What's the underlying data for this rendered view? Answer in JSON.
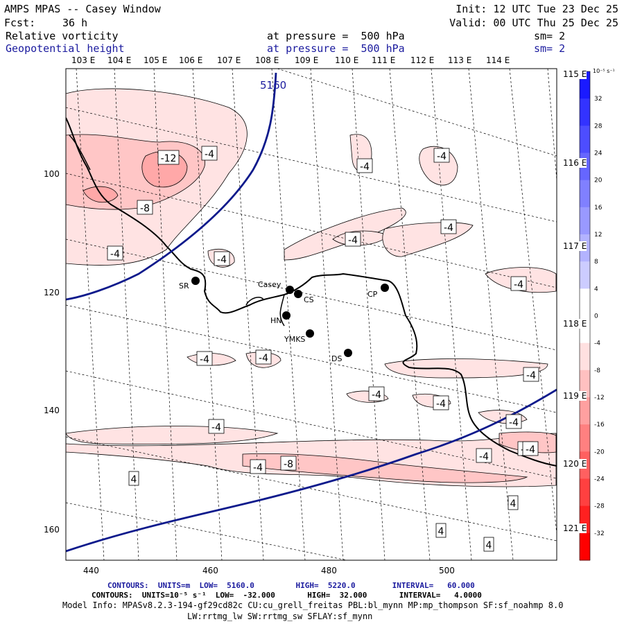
{
  "header": {
    "title": "AMPS MPAS -- Casey Window",
    "fcst_label": "Fcst:",
    "fcst_value": "36 h",
    "init": "Init: 12 UTC Tue 23 Dec 25",
    "valid": "Valid: 00 UTC Thu 25 Dec 25",
    "field1": {
      "name": "Relative vorticity",
      "level": "at pressure =  500 hPa",
      "sm": "sm= 2"
    },
    "field2": {
      "name": "Geopotential height",
      "level": "at pressure =  500 hPa",
      "sm": "sm= 2"
    }
  },
  "top_lon_labels": [
    "103 E",
    "104 E",
    "105 E",
    "106 E",
    "107 E",
    "108 E",
    "109 E",
    "110 E",
    "111 E",
    "112 E",
    "113 E",
    "114 E"
  ],
  "right_lon_labels": [
    "115 E",
    "116 E",
    "117 E",
    "118 E",
    "119 E",
    "120 E",
    "121 E"
  ],
  "x_axis_ticks": [
    "440",
    "460",
    "480",
    "500"
  ],
  "y_axis_ticks": [
    "100",
    "120",
    "140",
    "160"
  ],
  "colorbar": {
    "unit": "10⁻⁵ s⁻¹",
    "labels": [
      "32",
      "28",
      "24",
      "20",
      "16",
      "12",
      "8",
      "4",
      "0",
      "-4",
      "-8",
      "-12",
      "-16",
      "-20",
      "-24",
      "-28",
      "-32"
    ],
    "colors": [
      "#1a1aff",
      "#3333ff",
      "#4d4dff",
      "#6666ff",
      "#8080ff",
      "#9999ff",
      "#b3b3ff",
      "#ccccff",
      "#ffffff",
      "#ffffff",
      "#ffe0e0",
      "#ffc0c0",
      "#ffa0a0",
      "#ff8080",
      "#ff6060",
      "#ff4040",
      "#ff2020",
      "#ff0000"
    ]
  },
  "height_contour_label": "5160",
  "vorticity_labels": [
    "-12",
    "-4",
    "-4",
    "-4",
    "-8",
    "-4",
    "-4",
    "-4",
    "-4",
    "-4",
    "-4",
    "-4",
    "-4",
    "-4",
    "-4",
    "-4",
    "-4",
    "-4",
    "-4",
    "-8",
    "-8",
    "-4",
    "4",
    "4",
    "4",
    "4"
  ],
  "stations": [
    {
      "name": "SR"
    },
    {
      "name": "Casey"
    },
    {
      "name": "CS"
    },
    {
      "name": "CP"
    },
    {
      "name": "HN"
    },
    {
      "name": "YMKS"
    },
    {
      "name": "DS"
    }
  ],
  "footer": {
    "contours1": "CONTOURS:  UNITS=m  LOW=  5160.0         HIGH=  5220.0        INTERVAL=   60.000",
    "contours2": "CONTOURS:  UNITS=10⁻⁵ s⁻¹  LOW=  -32.000       HIGH=  32.000       INTERVAL=   4.0000",
    "model_info": "Model Info: MPASv8.2.3-194-gf29cd82c CU:cu_grell_freitas PBL:bl_mynn MP:mp_thompson SF:sf_noahmp 8.0",
    "physics": "LW:rrtmg_lw SW:rrtmg_sw SFLAY:sf_mynn"
  }
}
